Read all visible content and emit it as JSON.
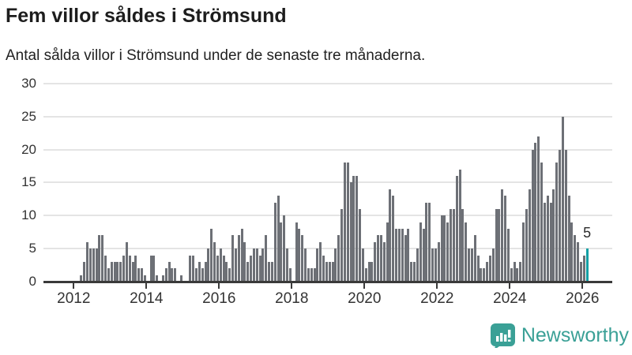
{
  "header": {
    "title": "Fem villor såldes i Strömsund",
    "subtitle": "Antal sålda villor i Strömsund under de senaste tre månaderna."
  },
  "chart_data": {
    "type": "bar",
    "title": "Fem villor såldes i Strömsund",
    "subtitle": "Antal sålda villor i Strömsund under de senaste tre månaderna.",
    "xlabel": "",
    "ylabel": "",
    "ylim": [
      0,
      30
    ],
    "grid": "horizontal",
    "y_ticks": [
      0,
      5,
      10,
      15,
      20,
      25,
      30
    ],
    "x_ticks": [
      "2012",
      "2014",
      "2016",
      "2018",
      "2020",
      "2022",
      "2024",
      "2026"
    ],
    "freq": "monthly",
    "start": "2012-01",
    "values": [
      0,
      0,
      1,
      3,
      6,
      5,
      5,
      5,
      7,
      7,
      4,
      2,
      3,
      3,
      3,
      3,
      4,
      6,
      4,
      3,
      4,
      2,
      2,
      1,
      0,
      4,
      4,
      1,
      0,
      1,
      2,
      3,
      2,
      2,
      0,
      1,
      0,
      0,
      4,
      4,
      2,
      3,
      2,
      3,
      5,
      8,
      6,
      4,
      5,
      4,
      3,
      2,
      7,
      5,
      7,
      8,
      6,
      3,
      4,
      5,
      5,
      4,
      5,
      7,
      3,
      3,
      12,
      13,
      9,
      10,
      5,
      2,
      0,
      9,
      8,
      7,
      5,
      2,
      2,
      2,
      5,
      6,
      4,
      3,
      3,
      3,
      5,
      7,
      11,
      18,
      18,
      15,
      16,
      16,
      11,
      5,
      2,
      3,
      3,
      6,
      7,
      7,
      6,
      9,
      14,
      13,
      8,
      8,
      8,
      7,
      8,
      3,
      3,
      5,
      9,
      8,
      12,
      12,
      5,
      5,
      6,
      10,
      10,
      9,
      11,
      11,
      16,
      17,
      11,
      9,
      5,
      5,
      7,
      4,
      2,
      2,
      3,
      4,
      5,
      11,
      11,
      14,
      13,
      8,
      2,
      3,
      2,
      3,
      9,
      11,
      14,
      20,
      21,
      22,
      18,
      12,
      13,
      12,
      14,
      18,
      20,
      25,
      20,
      13,
      9,
      7,
      6,
      3,
      4,
      5
    ],
    "bar_color": "#6d7076",
    "highlight": {
      "index_from_end": 1,
      "value": 5,
      "label": "5",
      "color": "#14a0a5"
    },
    "legend": "none"
  },
  "footer": {
    "brand": "Newsworthy",
    "brand_color": "#3aa096",
    "logo_icon": "bar-chart-speech-bubble-icon"
  }
}
